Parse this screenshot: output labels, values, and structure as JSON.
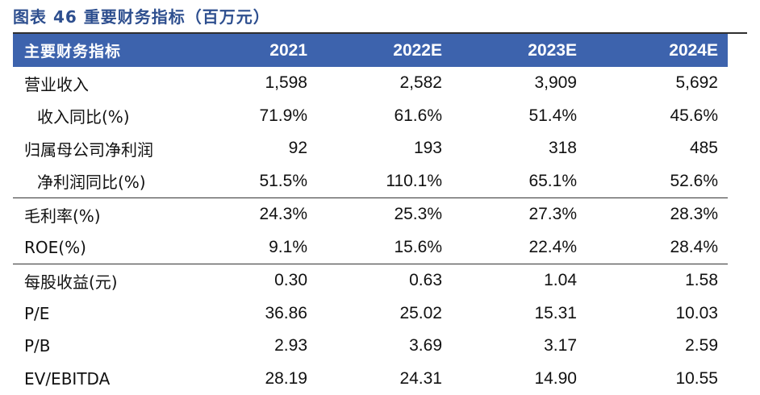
{
  "title": "图表 46 重要财务指标（百万元）",
  "table": {
    "headers": [
      "主要财务指标",
      "2021",
      "2022E",
      "2023E",
      "2024E"
    ],
    "rows": [
      {
        "label": "营业收入",
        "values": [
          "1,598",
          "2,582",
          "3,909",
          "5,692"
        ]
      },
      {
        "label": "收入同比(%)",
        "values": [
          "71.9%",
          "61.6%",
          "51.4%",
          "45.6%"
        ]
      },
      {
        "label": "归属母公司净利润",
        "values": [
          "92",
          "193",
          "318",
          "485"
        ]
      },
      {
        "label": "净利润同比(%)",
        "values": [
          "51.5%",
          "110.1%",
          "65.1%",
          "52.6%"
        ]
      },
      {
        "label": "毛利率(%)",
        "values": [
          "24.3%",
          "25.3%",
          "27.3%",
          "28.3%"
        ]
      },
      {
        "label": "ROE(%)",
        "values": [
          "9.1%",
          "15.6%",
          "22.4%",
          "28.4%"
        ]
      },
      {
        "label": "每股收益(元)",
        "values": [
          "0.30",
          "0.63",
          "1.04",
          "1.58"
        ]
      },
      {
        "label": "P/E",
        "values": [
          "36.86",
          "25.02",
          "15.31",
          "10.03"
        ]
      },
      {
        "label": "P/B",
        "values": [
          "2.93",
          "3.69",
          "3.17",
          "2.59"
        ]
      },
      {
        "label": "EV/EBITDA",
        "values": [
          "28.19",
          "24.31",
          "14.90",
          "10.55"
        ]
      }
    ]
  }
}
